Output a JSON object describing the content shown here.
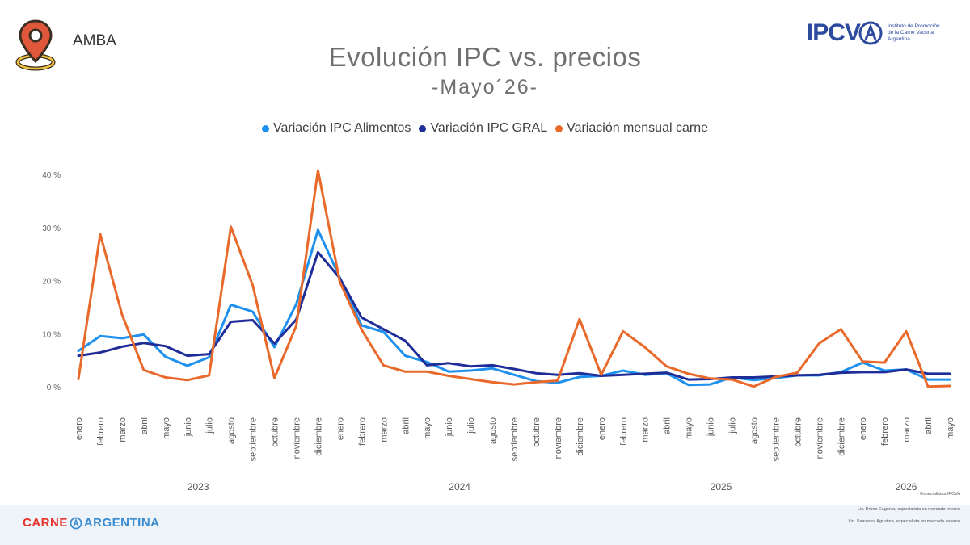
{
  "header": {
    "location": "AMBA",
    "title": "Evolución IPC vs. precios",
    "subtitle": "-Mayo´26-"
  },
  "brand": {
    "name": "IPCV",
    "description_lines": [
      "Instituto de Promoción",
      "de la Carne Vacuna",
      "Argentina"
    ]
  },
  "footer": {
    "logo_left": "CARNE",
    "logo_right": "ARGENTINA",
    "credits": [
      "Especialistas IPCVA",
      "Lic. Bruno Eugenia, especialista en mercado interno",
      "Lic. Saavedra Agustina, especialista en mercado externo"
    ]
  },
  "colors": {
    "alimentos": "#1e90ee",
    "gral": "#1f2d99",
    "carne": "#e8692a",
    "pin": "#e0573c",
    "pin_ring": "#f3c43f"
  },
  "chart_data": {
    "type": "line",
    "title": "Evolución IPC vs. precios",
    "subtitle": "-Mayo´26-",
    "xlabel": "",
    "ylabel": "",
    "ylim": [
      0,
      40
    ],
    "yticks": [
      0,
      10,
      20,
      30,
      40
    ],
    "ytick_labels": [
      "0 %",
      "10 %",
      "20 %",
      "30 %",
      "40 %"
    ],
    "grid": false,
    "legend_position": "top",
    "categories": [
      "enero",
      "febrero",
      "marzo",
      "abril",
      "mayo",
      "junio",
      "julio",
      "agosto",
      "septiembre",
      "octubre",
      "noviembre",
      "diciembre",
      "enero",
      "febrero",
      "marzo",
      "abril",
      "mayo",
      "junio",
      "julio",
      "agosto",
      "septiembre",
      "octubre",
      "noviembre",
      "diciembre",
      "enero",
      "febrero",
      "marzo",
      "abril",
      "mayo",
      "junio",
      "julio",
      "agosto",
      "septiembre",
      "octubre",
      "noviembre",
      "diciembre",
      "enero",
      "febrero",
      "marzo",
      "abril",
      "mayo"
    ],
    "year_groups": [
      {
        "label": "2023",
        "start": 0,
        "end": 11
      },
      {
        "label": "2024",
        "start": 12,
        "end": 23
      },
      {
        "label": "2025",
        "start": 24,
        "end": 35
      },
      {
        "label": "2026",
        "start": 36,
        "end": 40
      }
    ],
    "series": [
      {
        "name": "Variación IPC Alimentos",
        "values": [
          6.9,
          9.7,
          9.3,
          10.0,
          5.8,
          4.1,
          5.7,
          15.6,
          14.3,
          7.6,
          15.7,
          29.7,
          20.7,
          11.7,
          10.5,
          6.0,
          4.8,
          3.0,
          3.2,
          3.6,
          2.4,
          1.2,
          0.9,
          2.0,
          2.2,
          3.2,
          2.4,
          2.7,
          0.5,
          0.6,
          1.9,
          1.4,
          1.8,
          2.3,
          2.3,
          2.9,
          4.7,
          3.2,
          3.4,
          1.5,
          1.5
        ]
      },
      {
        "name": "Variación IPC GRAL",
        "values": [
          6.0,
          6.6,
          7.7,
          8.4,
          7.8,
          6.0,
          6.3,
          12.4,
          12.7,
          8.3,
          12.8,
          25.5,
          20.6,
          13.2,
          11.0,
          8.8,
          4.2,
          4.6,
          4.0,
          4.2,
          3.5,
          2.7,
          2.4,
          2.7,
          2.2,
          2.4,
          2.6,
          2.8,
          1.5,
          1.6,
          1.9,
          1.9,
          2.1,
          2.3,
          2.4,
          2.8,
          2.9,
          2.9,
          3.4,
          2.6,
          2.6
        ]
      },
      {
        "name": "Variación mensual carne",
        "values": [
          1.6,
          28.9,
          13.8,
          3.3,
          1.9,
          1.4,
          2.3,
          30.3,
          19.3,
          1.8,
          11.6,
          40.9,
          19.9,
          10.9,
          4.2,
          3.0,
          3.0,
          2.2,
          1.6,
          1.0,
          0.6,
          1.0,
          1.3,
          12.9,
          2.4,
          10.6,
          7.6,
          4.0,
          2.6,
          1.7,
          1.5,
          0.2,
          2.0,
          2.8,
          8.3,
          11.0,
          4.9,
          4.7,
          10.6,
          0.2,
          0.3
        ]
      }
    ]
  }
}
